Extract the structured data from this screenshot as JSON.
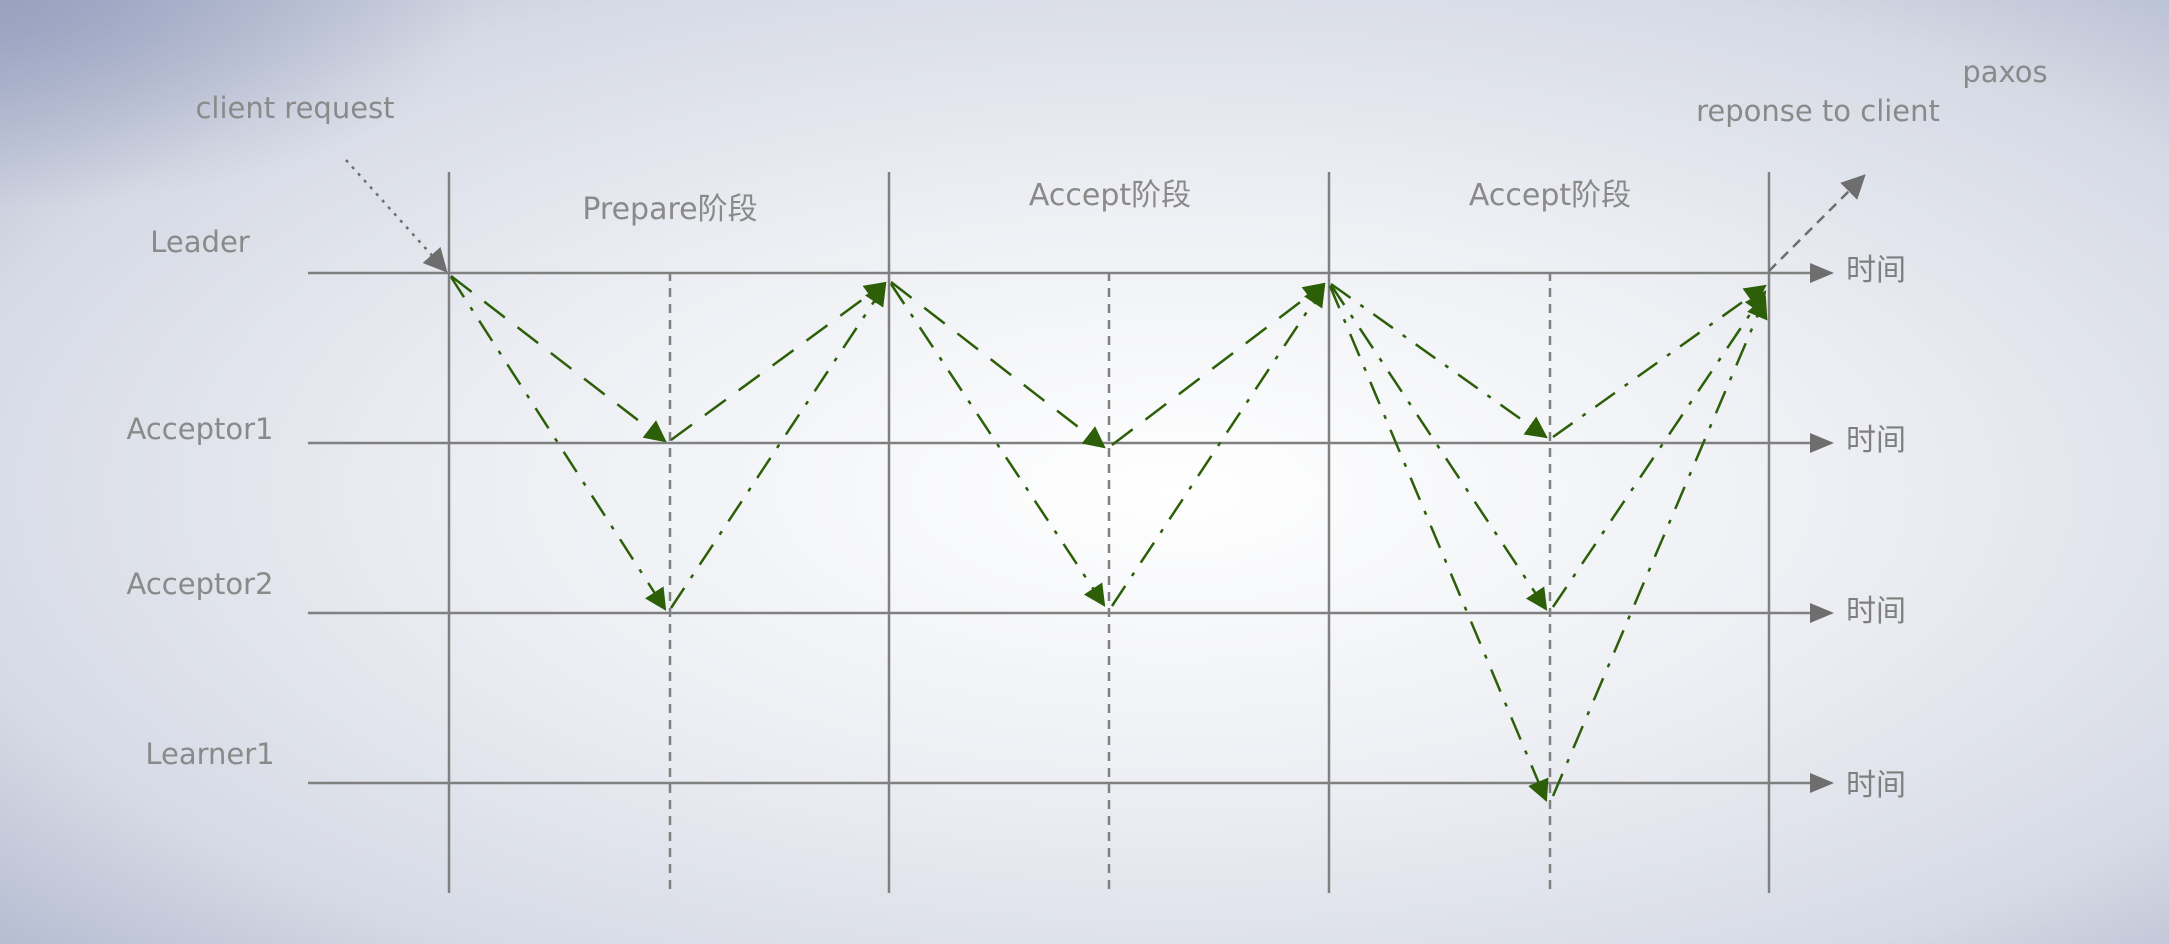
{
  "title": "paxos",
  "client_request": "client request",
  "response": "reponse to client",
  "lanes": [
    "Leader",
    "Acceptor1",
    "Acceptor2",
    "Learner1"
  ],
  "time_label": "时间",
  "phases": [
    "Prepare阶段",
    "Accept阶段",
    "Accept阶段"
  ],
  "colors": {
    "axis": "#808080",
    "message": "#2c5f08",
    "background_center": "#ffffff",
    "background_edge": "#b8bfd4"
  }
}
